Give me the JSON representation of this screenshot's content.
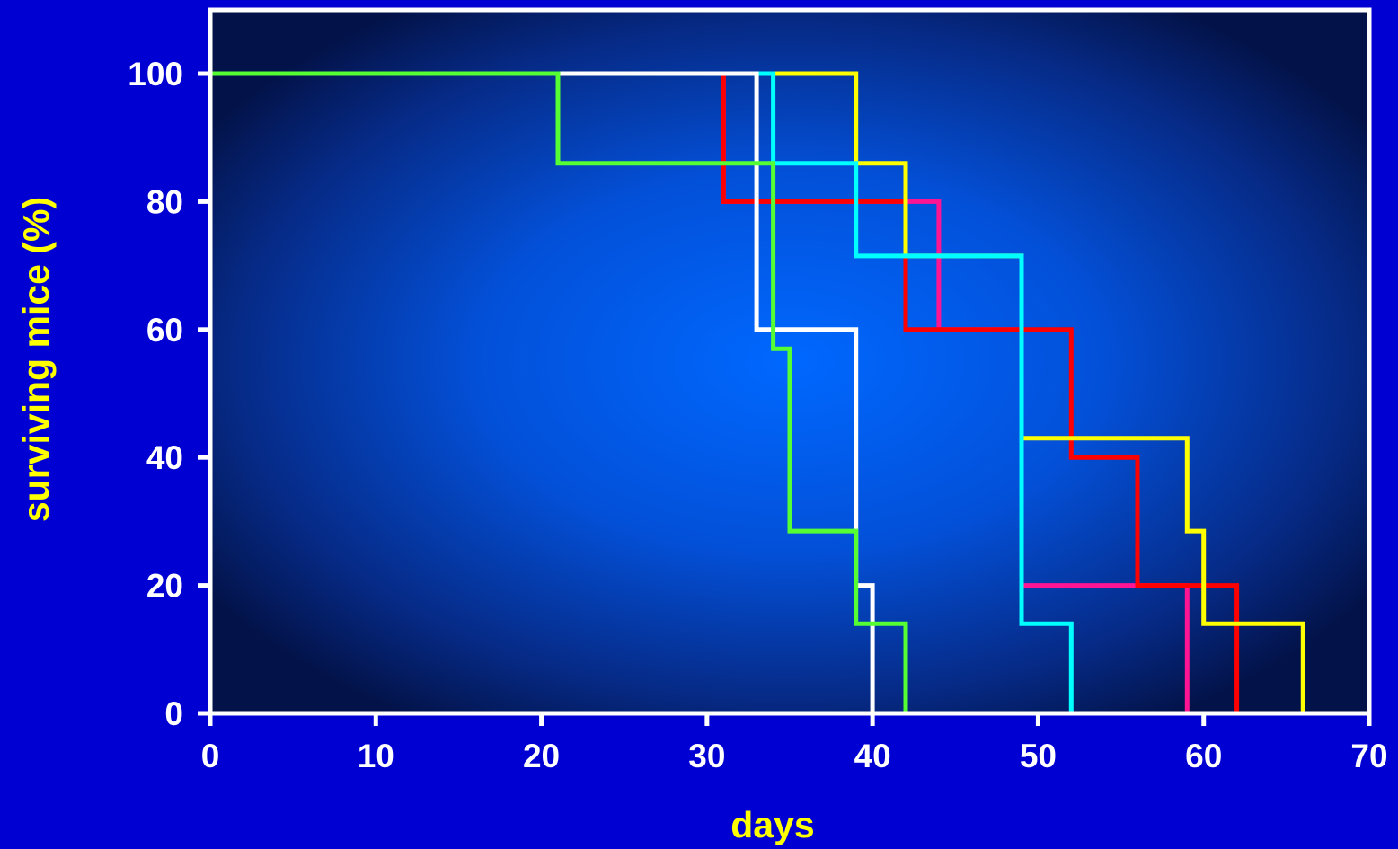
{
  "chart_data": {
    "type": "line",
    "step": true,
    "title": "",
    "xlabel": "days",
    "ylabel": "surviving mice (%)",
    "xlim": [
      0,
      70
    ],
    "ylim": [
      0,
      100
    ],
    "xticks": [
      0,
      10,
      20,
      30,
      40,
      50,
      60,
      70
    ],
    "yticks": [
      0,
      20,
      40,
      60,
      80,
      100
    ],
    "grid": false,
    "legend": "none",
    "colors": {
      "page_background": "#0000d2",
      "plot_center": "#0066ff",
      "plot_edge": "#02104a",
      "frame": "#ffffff",
      "tick_labels": "#ffffff",
      "axis_titles": "#ffff00"
    },
    "series": [
      {
        "color": "#ff1493",
        "x": [
          0,
          31,
          44,
          49,
          59
        ],
        "y": [
          100,
          80,
          60,
          20,
          0
        ]
      },
      {
        "color": "#ff0000",
        "x": [
          0,
          31,
          42,
          52,
          56,
          62
        ],
        "y": [
          100,
          80,
          60,
          40,
          20,
          0
        ]
      },
      {
        "color": "#ffff00",
        "x": [
          0,
          39,
          42,
          49,
          59,
          60,
          66
        ],
        "y": [
          100,
          86,
          71.5,
          43,
          28.5,
          14,
          0
        ]
      },
      {
        "color": "#00ffff",
        "x": [
          0,
          34,
          39,
          49,
          52
        ],
        "y": [
          100,
          86,
          71.5,
          14,
          0
        ]
      },
      {
        "color": "#ffffff",
        "x": [
          0,
          33,
          39,
          40
        ],
        "y": [
          100,
          60,
          20,
          0
        ]
      },
      {
        "color": "#55ff33",
        "x": [
          0,
          21,
          34,
          35,
          39,
          42
        ],
        "y": [
          100,
          86,
          57,
          28.5,
          14,
          0
        ]
      }
    ]
  }
}
